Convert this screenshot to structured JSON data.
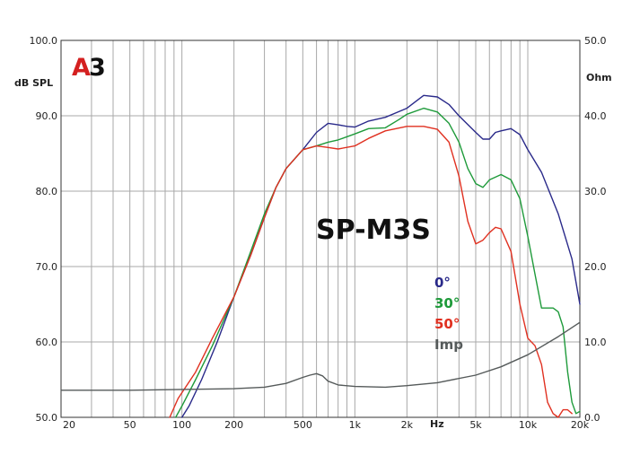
{
  "logo": {
    "letter": "A",
    "digit": "3"
  },
  "chart_data": {
    "type": "line",
    "title": "SP-M3S",
    "xlabel": "Hz",
    "ylabel": "dB SPL",
    "y2label": "Ohm",
    "xscale": "log",
    "xlim": [
      20,
      20000
    ],
    "ylim": [
      50,
      100
    ],
    "y2lim": [
      0,
      50
    ],
    "grid": true,
    "legend_position": "right-center",
    "x_tick_labels": [
      {
        "value": 20,
        "label": "20"
      },
      {
        "value": 50,
        "label": "50"
      },
      {
        "value": 100,
        "label": "100"
      },
      {
        "value": 200,
        "label": "200"
      },
      {
        "value": 500,
        "label": "500"
      },
      {
        "value": 1000,
        "label": "1k"
      },
      {
        "value": 2000,
        "label": "2k"
      },
      {
        "value": 5000,
        "label": "5k"
      },
      {
        "value": 10000,
        "label": "10k"
      },
      {
        "value": 20000,
        "label": "20k"
      }
    ],
    "y_tick_labels": [
      "50.0",
      "60.0",
      "70.0",
      "80.0",
      "90.0",
      "100.0"
    ],
    "y2_tick_labels": [
      "0.0",
      "10.0",
      "20.0",
      "30.0",
      "40.0",
      "50.0"
    ],
    "colors": {
      "0deg": "#2a2a8a",
      "30deg": "#1e9a3a",
      "50deg": "#e03020",
      "imp": "#555a5a"
    },
    "series": [
      {
        "name": "0°",
        "axis": "left",
        "points": [
          [
            100,
            50
          ],
          [
            110,
            51.5
          ],
          [
            130,
            55
          ],
          [
            160,
            60
          ],
          [
            200,
            66
          ],
          [
            250,
            71.5
          ],
          [
            300,
            76.5
          ],
          [
            350,
            80.5
          ],
          [
            400,
            83
          ],
          [
            500,
            85.5
          ],
          [
            600,
            87.8
          ],
          [
            700,
            89
          ],
          [
            800,
            88.8
          ],
          [
            900,
            88.6
          ],
          [
            1000,
            88.5
          ],
          [
            1200,
            89.3
          ],
          [
            1500,
            89.8
          ],
          [
            2000,
            91
          ],
          [
            2500,
            92.7
          ],
          [
            3000,
            92.5
          ],
          [
            3500,
            91.5
          ],
          [
            4000,
            90
          ],
          [
            5000,
            87.8
          ],
          [
            5500,
            86.9
          ],
          [
            6000,
            86.9
          ],
          [
            6500,
            87.8
          ],
          [
            7000,
            88
          ],
          [
            8000,
            88.3
          ],
          [
            9000,
            87.5
          ],
          [
            10000,
            85.5
          ],
          [
            12000,
            82.5
          ],
          [
            15000,
            77
          ],
          [
            18000,
            71
          ],
          [
            20000,
            65
          ]
        ]
      },
      {
        "name": "30°",
        "axis": "left",
        "points": [
          [
            92,
            50
          ],
          [
            100,
            51.5
          ],
          [
            120,
            55
          ],
          [
            150,
            59.5
          ],
          [
            200,
            66
          ],
          [
            250,
            72
          ],
          [
            300,
            77
          ],
          [
            350,
            80.5
          ],
          [
            400,
            83
          ],
          [
            500,
            85.5
          ],
          [
            600,
            86
          ],
          [
            700,
            86.5
          ],
          [
            800,
            86.8
          ],
          [
            1000,
            87.6
          ],
          [
            1200,
            88.3
          ],
          [
            1500,
            88.4
          ],
          [
            1800,
            89.5
          ],
          [
            2000,
            90.2
          ],
          [
            2500,
            91
          ],
          [
            3000,
            90.5
          ],
          [
            3500,
            89
          ],
          [
            4000,
            86.5
          ],
          [
            4500,
            83
          ],
          [
            5000,
            81
          ],
          [
            5500,
            80.5
          ],
          [
            6000,
            81.5
          ],
          [
            7000,
            82.2
          ],
          [
            8000,
            81.5
          ],
          [
            9000,
            79
          ],
          [
            10000,
            74
          ],
          [
            11000,
            69
          ],
          [
            12000,
            64.5
          ],
          [
            13000,
            64.5
          ],
          [
            14000,
            64.5
          ],
          [
            15000,
            64
          ],
          [
            16000,
            62
          ],
          [
            17000,
            56
          ],
          [
            18000,
            52
          ],
          [
            19000,
            50.5
          ],
          [
            20000,
            50.8
          ]
        ]
      },
      {
        "name": "50°",
        "axis": "left",
        "points": [
          [
            85,
            50
          ],
          [
            95,
            52.5
          ],
          [
            120,
            56
          ],
          [
            150,
            60.5
          ],
          [
            200,
            66
          ],
          [
            250,
            71.5
          ],
          [
            300,
            76.5
          ],
          [
            350,
            80.5
          ],
          [
            400,
            83
          ],
          [
            500,
            85.5
          ],
          [
            600,
            86
          ],
          [
            700,
            85.8
          ],
          [
            800,
            85.6
          ],
          [
            1000,
            86
          ],
          [
            1200,
            87
          ],
          [
            1500,
            88
          ],
          [
            2000,
            88.6
          ],
          [
            2500,
            88.6
          ],
          [
            3000,
            88.2
          ],
          [
            3500,
            86.5
          ],
          [
            4000,
            82
          ],
          [
            4500,
            76
          ],
          [
            5000,
            73
          ],
          [
            5500,
            73.5
          ],
          [
            6000,
            74.5
          ],
          [
            6500,
            75.2
          ],
          [
            7000,
            75
          ],
          [
            8000,
            72
          ],
          [
            9000,
            65
          ],
          [
            10000,
            60.5
          ],
          [
            11000,
            59.5
          ],
          [
            12000,
            57
          ],
          [
            13000,
            52
          ],
          [
            14000,
            50.5
          ],
          [
            15000,
            50
          ],
          [
            16000,
            51
          ],
          [
            17000,
            51
          ],
          [
            18000,
            50.5
          ]
        ]
      },
      {
        "name": "Imp",
        "axis": "right",
        "points": [
          [
            20,
            3.6
          ],
          [
            50,
            3.6
          ],
          [
            100,
            3.7
          ],
          [
            200,
            3.8
          ],
          [
            300,
            4
          ],
          [
            400,
            4.5
          ],
          [
            500,
            5.3
          ],
          [
            550,
            5.6
          ],
          [
            600,
            5.8
          ],
          [
            650,
            5.5
          ],
          [
            700,
            4.8
          ],
          [
            800,
            4.3
          ],
          [
            1000,
            4.1
          ],
          [
            1500,
            4
          ],
          [
            2000,
            4.2
          ],
          [
            3000,
            4.6
          ],
          [
            5000,
            5.6
          ],
          [
            7000,
            6.7
          ],
          [
            10000,
            8.3
          ],
          [
            15000,
            10.7
          ],
          [
            20000,
            12.6
          ]
        ]
      }
    ]
  }
}
